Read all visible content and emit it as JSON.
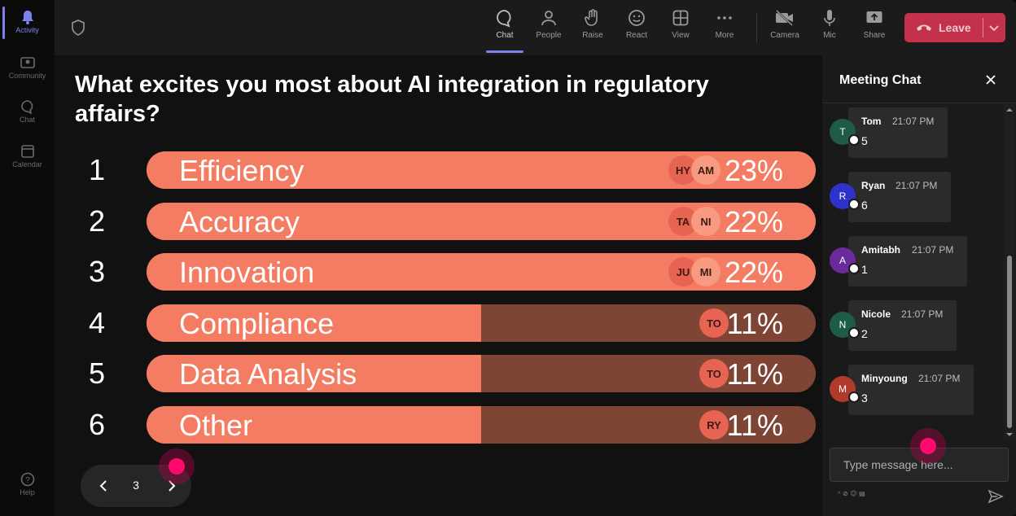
{
  "rail": {
    "items": [
      {
        "label": "Activity",
        "icon": "bell-icon"
      },
      {
        "label": "Community",
        "icon": "community-icon"
      },
      {
        "label": "Chat",
        "icon": "chat-icon"
      },
      {
        "label": "Calendar",
        "icon": "calendar-icon"
      }
    ],
    "help": "Help"
  },
  "toolbar": {
    "items": [
      {
        "label": "Chat",
        "icon": "chat-icon"
      },
      {
        "label": "People",
        "icon": "people-icon"
      },
      {
        "label": "Raise",
        "icon": "raise-hand-icon"
      },
      {
        "label": "React",
        "icon": "smiley-icon"
      },
      {
        "label": "View",
        "icon": "grid-icon"
      },
      {
        "label": "More",
        "icon": "more-icon"
      },
      {
        "label": "Camera",
        "icon": "camera-off-icon"
      },
      {
        "label": "Mic",
        "icon": "mic-icon"
      },
      {
        "label": "Share",
        "icon": "share-icon"
      }
    ],
    "leave_label": "Leave"
  },
  "poll": {
    "question": "What excites you most about AI integration in regulatory affairs?",
    "options": [
      {
        "rank": "1",
        "label": "Efficiency",
        "percent": "23%",
        "fraction": 1.0,
        "avatars": [
          "HY",
          "AM"
        ]
      },
      {
        "rank": "2",
        "label": "Accuracy",
        "percent": "22%",
        "fraction": 1.0,
        "avatars": [
          "TA",
          "NI"
        ]
      },
      {
        "rank": "3",
        "label": "Innovation",
        "percent": "22%",
        "fraction": 1.0,
        "avatars": [
          "JU",
          "MI"
        ]
      },
      {
        "rank": "4",
        "label": "Compliance",
        "percent": "11%",
        "fraction": 0.5,
        "avatars": [
          "TO"
        ]
      },
      {
        "rank": "5",
        "label": "Data Analysis",
        "percent": "11%",
        "fraction": 0.5,
        "avatars": [
          "TO"
        ]
      },
      {
        "rank": "6",
        "label": "Other",
        "percent": "11%",
        "fraction": 0.5,
        "avatars": [
          "RY"
        ]
      }
    ],
    "page": "3"
  },
  "chat": {
    "title": "Meeting Chat",
    "messages": [
      {
        "initial": "T",
        "name": "Tom",
        "time": "21:07 PM",
        "text": "5",
        "color": "#1f5c45"
      },
      {
        "initial": "R",
        "name": "Ryan",
        "time": "21:07 PM",
        "text": "6",
        "color": "#2f32c8"
      },
      {
        "initial": "A",
        "name": "Amitabh",
        "time": "21:07 PM",
        "text": "1",
        "color": "#6b2a9a"
      },
      {
        "initial": "N",
        "name": "Nicole",
        "time": "21:07 PM",
        "text": "2",
        "color": "#1f5c45"
      },
      {
        "initial": "M",
        "name": "Minyoung",
        "time": "21:07 PM",
        "text": "3",
        "color": "#b23a2a"
      }
    ],
    "compose_placeholder": "Type message here..."
  },
  "colors": {
    "bar_fill": "#f47c62",
    "bar_track": "#7e4535",
    "leave": "#c4314b",
    "accent": "#7b83eb"
  }
}
